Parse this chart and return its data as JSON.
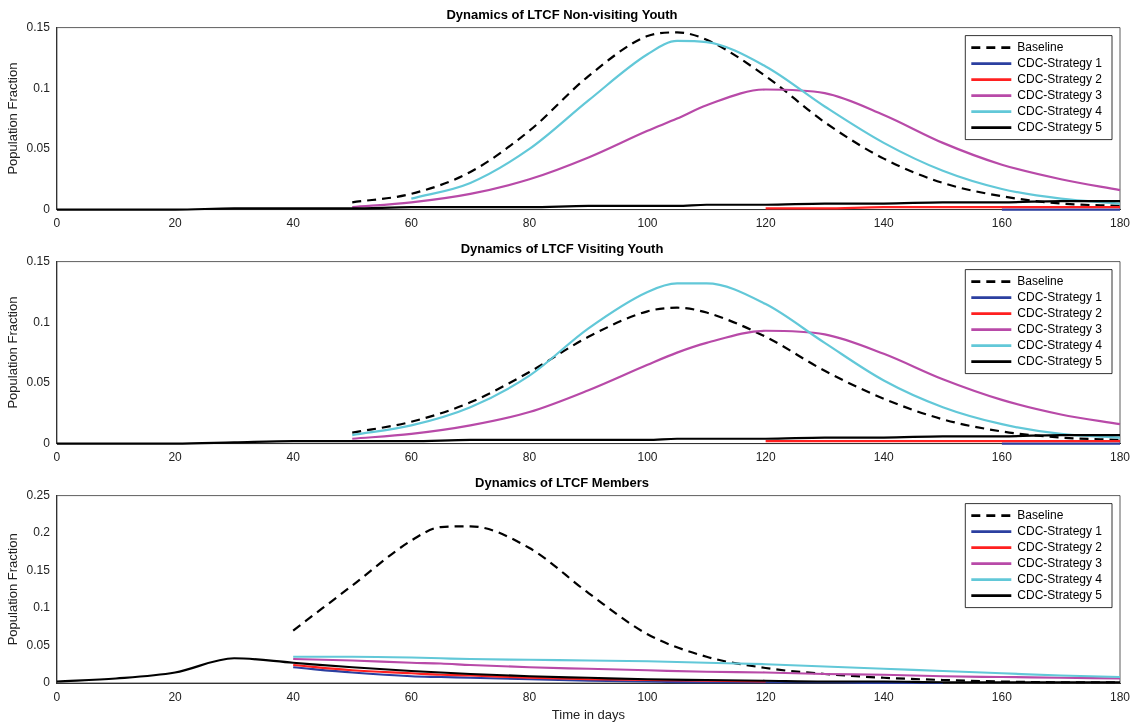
{
  "chart_data": [
    {
      "type": "line",
      "title": "Dynamics of LTCF Non-visiting Youth",
      "ylabel": "Population Fraction",
      "xlim": [
        0,
        180
      ],
      "xticks": [
        0,
        20,
        40,
        60,
        80,
        100,
        120,
        140,
        160,
        180
      ],
      "ylim": [
        0,
        0.15
      ],
      "yticks": [
        0,
        0.05,
        0.1,
        0.15
      ],
      "grid": false,
      "legend": "top right",
      "marker": "none",
      "x": [
        0,
        10,
        20,
        30,
        40,
        50,
        60,
        70,
        80,
        90,
        100,
        105,
        110,
        120,
        130,
        140,
        150,
        160,
        170,
        180
      ],
      "series": [
        {
          "name": "Baseline",
          "color": "#000000",
          "line_style": "dashed",
          "values": [
            null,
            null,
            null,
            null,
            null,
            0.006,
            0.013,
            0.031,
            0.065,
            0.11,
            0.143,
            0.146,
            0.14,
            0.11,
            0.072,
            0.042,
            0.022,
            0.011,
            0.005,
            0.003
          ]
        },
        {
          "name": "CDC-Strategy 1",
          "color": "#2b3fa0",
          "line_style": "solid",
          "values": [
            null,
            null,
            null,
            null,
            null,
            null,
            null,
            null,
            null,
            null,
            null,
            null,
            null,
            null,
            null,
            null,
            null,
            0,
            0,
            0
          ]
        },
        {
          "name": "CDC-Strategy 2",
          "color": "#ff2020",
          "line_style": "solid",
          "values": [
            null,
            null,
            null,
            null,
            null,
            null,
            null,
            null,
            null,
            null,
            null,
            null,
            null,
            0.001,
            0.001,
            0.002,
            0.002,
            0.002,
            0.002,
            0.002
          ]
        },
        {
          "name": "CDC-Strategy 3",
          "color": "#b84aa8",
          "line_style": "solid",
          "values": [
            null,
            null,
            null,
            null,
            null,
            0.002,
            0.006,
            0.013,
            0.025,
            0.043,
            0.065,
            0.075,
            0.086,
            0.099,
            0.096,
            0.078,
            0.055,
            0.037,
            0.025,
            0.016
          ]
        },
        {
          "name": "CDC-Strategy 4",
          "color": "#62c8d8",
          "line_style": "solid",
          "values": [
            null,
            null,
            null,
            null,
            null,
            null,
            0.009,
            0.022,
            0.05,
            0.09,
            0.128,
            0.139,
            0.138,
            0.118,
            0.085,
            0.055,
            0.032,
            0.017,
            0.009,
            0.005
          ]
        },
        {
          "name": "CDC-Strategy 5",
          "color": "#000000",
          "line_style": "solid",
          "values": [
            0,
            0,
            0,
            0.001,
            0.001,
            0.001,
            0.002,
            0.002,
            0.002,
            0.003,
            0.003,
            0.003,
            0.004,
            0.004,
            0.005,
            0.005,
            0.006,
            0.006,
            0.007,
            0.007
          ]
        }
      ]
    },
    {
      "type": "line",
      "title": "Dynamics of LTCF Visiting Youth",
      "ylabel": "Population Fraction",
      "xlim": [
        0,
        180
      ],
      "xticks": [
        0,
        20,
        40,
        60,
        80,
        100,
        120,
        140,
        160,
        180
      ],
      "ylim": [
        0,
        0.15
      ],
      "yticks": [
        0,
        0.05,
        0.1,
        0.15
      ],
      "grid": false,
      "legend": "top right",
      "marker": "none",
      "x": [
        0,
        10,
        20,
        30,
        40,
        50,
        60,
        70,
        80,
        90,
        100,
        105,
        110,
        120,
        130,
        140,
        150,
        160,
        170,
        180
      ],
      "series": [
        {
          "name": "Baseline",
          "color": "#000000",
          "line_style": "dashed",
          "values": [
            null,
            null,
            null,
            null,
            null,
            0.009,
            0.018,
            0.034,
            0.059,
            0.088,
            0.109,
            0.112,
            0.108,
            0.088,
            0.06,
            0.037,
            0.02,
            0.01,
            0.005,
            0.003
          ]
        },
        {
          "name": "CDC-Strategy 1",
          "color": "#2b3fa0",
          "line_style": "solid",
          "values": [
            null,
            null,
            null,
            null,
            null,
            null,
            null,
            null,
            null,
            null,
            null,
            null,
            null,
            null,
            null,
            null,
            null,
            0,
            0,
            0
          ]
        },
        {
          "name": "CDC-Strategy 2",
          "color": "#ff2020",
          "line_style": "solid",
          "values": [
            null,
            null,
            null,
            null,
            null,
            null,
            null,
            null,
            null,
            null,
            null,
            null,
            null,
            0.002,
            0.002,
            0.002,
            0.002,
            0.002,
            0.002,
            0.002
          ]
        },
        {
          "name": "CDC-Strategy 3",
          "color": "#b84aa8",
          "line_style": "solid",
          "values": [
            null,
            null,
            null,
            null,
            null,
            0.004,
            0.008,
            0.015,
            0.026,
            0.044,
            0.065,
            0.075,
            0.083,
            0.093,
            0.09,
            0.074,
            0.053,
            0.036,
            0.024,
            0.016
          ]
        },
        {
          "name": "CDC-Strategy 4",
          "color": "#62c8d8",
          "line_style": "solid",
          "values": [
            null,
            null,
            null,
            null,
            null,
            0.007,
            0.015,
            0.03,
            0.056,
            0.095,
            0.125,
            0.132,
            0.132,
            0.115,
            0.083,
            0.052,
            0.03,
            0.016,
            0.008,
            0.005
          ]
        },
        {
          "name": "CDC-Strategy 5",
          "color": "#000000",
          "line_style": "solid",
          "values": [
            0,
            0,
            0,
            0.001,
            0.002,
            0.002,
            0.002,
            0.003,
            0.003,
            0.003,
            0.003,
            0.004,
            0.004,
            0.004,
            0.005,
            0.005,
            0.006,
            0.006,
            0.007,
            0.007
          ]
        }
      ]
    },
    {
      "type": "line",
      "title": "Dynamics of LTCF Members",
      "xlabel": "Time in days",
      "ylabel": "Population Fraction",
      "xlim": [
        0,
        180
      ],
      "xticks": [
        0,
        20,
        40,
        60,
        80,
        100,
        120,
        140,
        160,
        180
      ],
      "ylim": [
        0,
        0.25
      ],
      "yticks": [
        0,
        0.05,
        0.1,
        0.15,
        0.2,
        0.25
      ],
      "grid": false,
      "legend": "top right",
      "marker": "none",
      "x": [
        0,
        10,
        20,
        30,
        40,
        50,
        60,
        65,
        70,
        80,
        90,
        100,
        110,
        120,
        130,
        140,
        150,
        160,
        170,
        180
      ],
      "series": [
        {
          "name": "Baseline",
          "color": "#000000",
          "line_style": "dashed",
          "values": [
            null,
            null,
            null,
            null,
            0.07,
            0.13,
            0.19,
            0.208,
            0.209,
            0.18,
            0.12,
            0.065,
            0.035,
            0.02,
            0.012,
            0.007,
            0.004,
            0.002,
            0.001,
            0.001
          ]
        },
        {
          "name": "CDC-Strategy 1",
          "color": "#2b3fa0",
          "line_style": "solid",
          "values": [
            null,
            null,
            null,
            null,
            0.021,
            0.014,
            0.009,
            0.008,
            0.007,
            0.005,
            0.003,
            0.002,
            0.001,
            0.001,
            0.001,
            0,
            0,
            null,
            null,
            null
          ]
        },
        {
          "name": "CDC-Strategy 2",
          "color": "#ff2020",
          "line_style": "solid",
          "values": [
            null,
            null,
            null,
            null,
            0.024,
            0.017,
            0.013,
            0.011,
            0.01,
            0.007,
            0.005,
            0.004,
            0.003,
            0.002,
            null,
            null,
            null,
            null,
            null,
            null
          ]
        },
        {
          "name": "CDC-Strategy 3",
          "color": "#b84aa8",
          "line_style": "solid",
          "values": [
            null,
            null,
            null,
            null,
            0.032,
            0.03,
            0.027,
            0.026,
            0.024,
            0.021,
            0.019,
            0.017,
            0.015,
            0.014,
            0.012,
            0.011,
            0.009,
            0.008,
            0.007,
            0.006
          ]
        },
        {
          "name": "CDC-Strategy 4",
          "color": "#62c8d8",
          "line_style": "solid",
          "values": [
            null,
            null,
            null,
            null,
            0.035,
            0.035,
            0.034,
            0.033,
            0.032,
            0.031,
            0.03,
            0.029,
            0.027,
            0.025,
            0.022,
            0.019,
            0.016,
            0.013,
            0.01,
            0.008
          ]
        },
        {
          "name": "CDC-Strategy 5",
          "color": "#000000",
          "line_style": "solid",
          "values": [
            0.002,
            0.006,
            0.014,
            0.033,
            0.027,
            0.021,
            0.016,
            0.014,
            0.012,
            0.009,
            0.007,
            0.005,
            0.004,
            0.003,
            0.002,
            0.002,
            0.001,
            0.001,
            0.001,
            0.001
          ]
        }
      ]
    }
  ]
}
